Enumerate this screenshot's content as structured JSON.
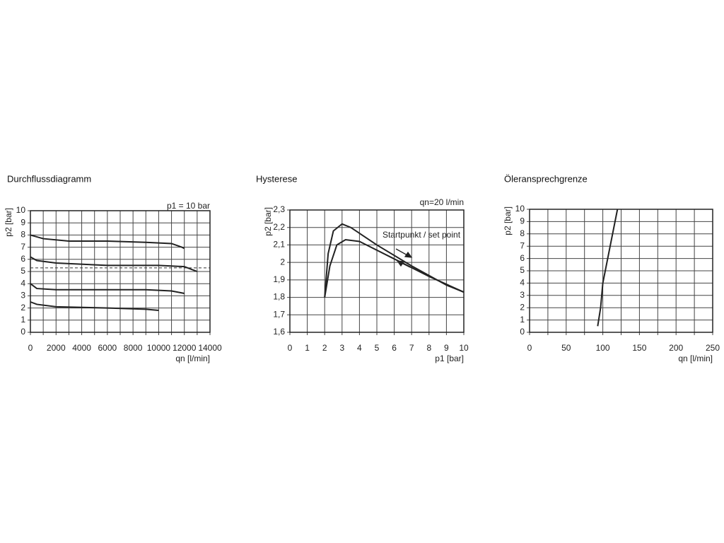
{
  "chart_data": [
    {
      "type": "line",
      "title": "Durchflussdiagramm",
      "annotations": [
        "p1 = 10 bar"
      ],
      "xlabel": "qn [l/min]",
      "ylabel": "p2 [bar]",
      "xlim": [
        0,
        14000
      ],
      "ylim": [
        0,
        10
      ],
      "xticks": [
        0,
        2000,
        4000,
        6000,
        8000,
        10000,
        12000,
        14000
      ],
      "xgrid": [
        0,
        1000,
        2000,
        3000,
        4000,
        5000,
        6000,
        7000,
        8000,
        9000,
        10000,
        11000,
        12000,
        13000,
        14000
      ],
      "yticks": [
        0,
        1,
        2,
        3,
        4,
        5,
        6,
        7,
        8,
        9,
        10
      ],
      "dashed_line": 5.3,
      "color": "#222222",
      "series": [
        {
          "x": [
            0,
            1000,
            3000,
            6000,
            9000,
            11000,
            11800,
            12000
          ],
          "values": [
            8,
            7.7,
            7.5,
            7.5,
            7.4,
            7.3,
            7.0,
            6.9
          ]
        },
        {
          "x": [
            0,
            500,
            2000,
            6000,
            10000,
            12000,
            12500,
            13000
          ],
          "values": [
            6.2,
            5.9,
            5.7,
            5.5,
            5.5,
            5.4,
            5.2,
            5.0
          ]
        },
        {
          "x": [
            0,
            500,
            2000,
            9000,
            11000,
            12000
          ],
          "values": [
            4,
            3.6,
            3.5,
            3.5,
            3.4,
            3.2
          ]
        },
        {
          "x": [
            0,
            500,
            2000,
            6000,
            9000,
            10000
          ],
          "values": [
            2.5,
            2.3,
            2.1,
            2.0,
            1.9,
            1.8
          ]
        }
      ]
    },
    {
      "type": "line",
      "title": "Hysterese",
      "annotations": [
        "qn=20 l/min",
        "Startpunkt / set point"
      ],
      "xlabel": "p1 [bar]",
      "ylabel": "p2 [bar]",
      "xlim": [
        0,
        10
      ],
      "ylim": [
        1.6,
        2.3
      ],
      "xticks": [
        0,
        1,
        2,
        3,
        4,
        5,
        6,
        7,
        8,
        9,
        10
      ],
      "yticks": [
        {
          "value": 1.6,
          "label": "1,6"
        },
        {
          "value": 1.7,
          "label": "1,7"
        },
        {
          "value": 1.8,
          "label": "1,8"
        },
        {
          "value": 1.9,
          "label": "1,9"
        },
        2,
        {
          "value": 2.1,
          "label": "2,1"
        },
        {
          "value": 2.2,
          "label": "2,2"
        },
        {
          "value": 2.3,
          "label": "2,3"
        }
      ],
      "color": "#222222",
      "series": [
        {
          "x": [
            2,
            2.2,
            2.5,
            3,
            3.5,
            5,
            7,
            9,
            10
          ],
          "values": [
            1.8,
            2.05,
            2.18,
            2.22,
            2.2,
            2.1,
            1.98,
            1.87,
            1.83
          ]
        },
        {
          "x": [
            2,
            2.3,
            2.7,
            3.2,
            4,
            6,
            8,
            10
          ],
          "values": [
            1.8,
            1.98,
            2.1,
            2.13,
            2.12,
            2.02,
            1.92,
            1.83
          ]
        }
      ]
    },
    {
      "type": "line",
      "title": "Öleransprechgrenze",
      "xlabel": "qn [l/min]",
      "ylabel": "p2 [bar]",
      "xlim": [
        0,
        250
      ],
      "ylim": [
        0,
        10
      ],
      "xticks": [
        0,
        50,
        100,
        150,
        200,
        250
      ],
      "xgrid": [
        0,
        25,
        50,
        75,
        100,
        125,
        150,
        175,
        200,
        225,
        250
      ],
      "yticks": [
        0,
        1,
        2,
        3,
        4,
        5,
        6,
        7,
        8,
        9,
        10
      ],
      "color": "#222222",
      "series": [
        {
          "x": [
            93,
            97,
            100,
            110,
            120
          ],
          "values": [
            0.5,
            2,
            4,
            7,
            10
          ]
        }
      ]
    }
  ]
}
